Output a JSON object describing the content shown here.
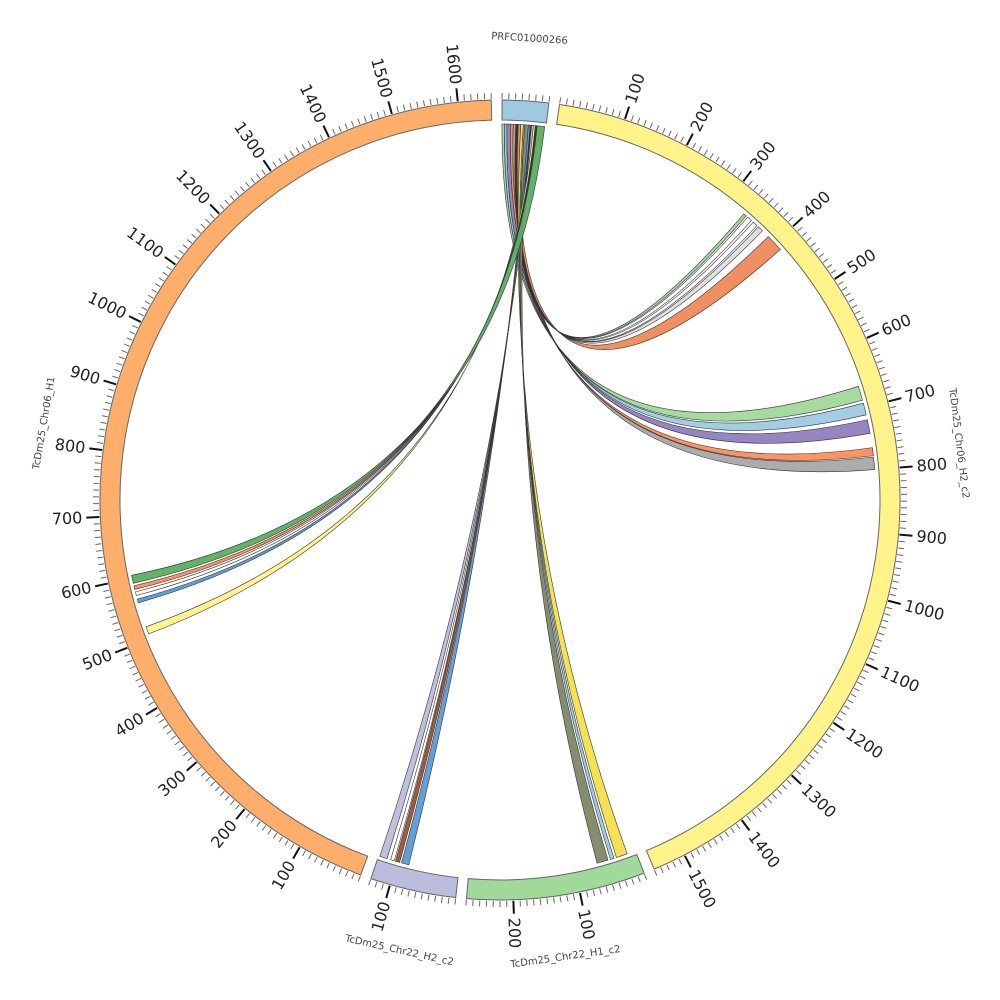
{
  "chart_data": {
    "type": "chord",
    "title": "",
    "tick_major": 100,
    "tick_minor": 10,
    "segments": [
      {
        "id": "PRFC",
        "name": "PRFC01000266",
        "length": 70,
        "color": "#9ecae1"
      },
      {
        "id": "Chr06_H2",
        "name": "TcDm25_Chr06_H2_c2",
        "length": 1550,
        "color": "#fff38a"
      },
      {
        "id": "Chr22_H1",
        "name": "TcDm25_Chr22_H1_c2",
        "length": 270,
        "color": "#a1d99b"
      },
      {
        "id": "Chr22_H2",
        "name": "TcDm25_Chr22_H2_c2",
        "length": 130,
        "color": "#bcbddc"
      },
      {
        "id": "Chr06_H1",
        "name": "TcDm25_Chr06_H1",
        "length": 1650,
        "color": "#fdae6b"
      }
    ],
    "links": [
      {
        "source": "PRFC",
        "s": [
          0,
          4
        ],
        "target": "Chr06_H2",
        "t": [
          665,
          688
        ],
        "color": "#a1d99b"
      },
      {
        "source": "PRFC",
        "s": [
          4,
          8
        ],
        "target": "Chr06_H2",
        "t": [
          693,
          712
        ],
        "color": "#9ecae1"
      },
      {
        "source": "PRFC",
        "s": [
          8,
          14
        ],
        "target": "Chr06_H2",
        "t": [
          720,
          742
        ],
        "color": "#8f7fbf"
      },
      {
        "source": "PRFC",
        "s": [
          14,
          18
        ],
        "target": "Chr06_H2",
        "t": [
          765,
          778
        ],
        "color": "#fc8d59"
      },
      {
        "source": "PRFC",
        "s": [
          18,
          22
        ],
        "target": "Chr06_H2",
        "t": [
          780,
          800
        ],
        "color": "#a8a8a8"
      },
      {
        "source": "PRFC",
        "s": [
          22,
          23
        ],
        "target": "Chr06_H2",
        "t": [
          332,
          337
        ],
        "color": "#a1d99b"
      },
      {
        "source": "PRFC",
        "s": [
          23,
          24
        ],
        "target": "Chr06_H2",
        "t": [
          340,
          348
        ],
        "color": "#ffffff"
      },
      {
        "source": "PRFC",
        "s": [
          24,
          25
        ],
        "target": "Chr06_H2",
        "t": [
          352,
          360
        ],
        "color": "#ffffff"
      },
      {
        "source": "PRFC",
        "s": [
          25,
          26
        ],
        "target": "Chr06_H2",
        "t": [
          363,
          372
        ],
        "color": "#dddddd"
      },
      {
        "source": "PRFC",
        "s": [
          26,
          30
        ],
        "target": "Chr06_H2",
        "t": [
          385,
          413
        ],
        "color": "#ef8a5a"
      },
      {
        "source": "PRFC",
        "s": [
          30,
          34
        ],
        "target": "Chr22_H1",
        "t": [
          14,
          32
        ],
        "color": "#f2e04b"
      },
      {
        "source": "PRFC",
        "s": [
          34,
          36
        ],
        "target": "Chr22_H1",
        "t": [
          36,
          42
        ],
        "color": "#9ecae1"
      },
      {
        "source": "PRFC",
        "s": [
          36,
          42
        ],
        "target": "Chr22_H1",
        "t": [
          46,
          64
        ],
        "color": "#7f8766"
      },
      {
        "source": "PRFC",
        "s": [
          42,
          45
        ],
        "target": "Chr22_H2",
        "t": [
          80,
          92
        ],
        "color": "#5b9bd5"
      },
      {
        "source": "PRFC",
        "s": [
          45,
          46
        ],
        "target": "Chr22_H2",
        "t": [
          95,
          102
        ],
        "color": "#a0522d"
      },
      {
        "source": "PRFC",
        "s": [
          46,
          47
        ],
        "target": "Chr22_H2",
        "t": [
          104,
          110
        ],
        "color": "#ffffff"
      },
      {
        "source": "PRFC",
        "s": [
          47,
          50
        ],
        "target": "Chr22_H2",
        "t": [
          116,
          128
        ],
        "color": "#bcbddc"
      },
      {
        "source": "PRFC",
        "s": [
          50,
          53
        ],
        "target": "Chr06_H1",
        "t": [
          508,
          520
        ],
        "color": "#fff38a"
      },
      {
        "source": "PRFC",
        "s": [
          53,
          54
        ],
        "target": "Chr06_H1",
        "t": [
          560,
          566
        ],
        "color": "#5b9bd5"
      },
      {
        "source": "PRFC",
        "s": [
          54,
          55
        ],
        "target": "Chr06_H1",
        "t": [
          572,
          578
        ],
        "color": "#ffffff"
      },
      {
        "source": "PRFC",
        "s": [
          55,
          56
        ],
        "target": "Chr06_H1",
        "t": [
          582,
          588
        ],
        "color": "#fc8d59"
      },
      {
        "source": "PRFC",
        "s": [
          56,
          68
        ],
        "target": "Chr06_H1",
        "t": [
          592,
          605
        ],
        "color": "#5aae61"
      }
    ]
  }
}
